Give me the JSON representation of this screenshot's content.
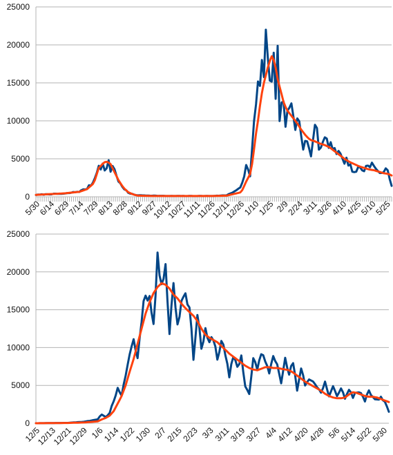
{
  "chart_data": [
    {
      "type": "line",
      "grid": true,
      "legend": "none",
      "ylim": [
        0,
        25000
      ],
      "yticks": [
        0,
        5000,
        10000,
        15000,
        20000,
        25000
      ],
      "xticks": [
        "5/30",
        "6/14",
        "6/29",
        "7/14",
        "7/29",
        "8/13",
        "8/28",
        "9/12",
        "9/27",
        "10/12",
        "10/27",
        "11/11",
        "11/26",
        "12/11",
        "12/26",
        "1/10",
        "1/25",
        "2/9",
        "2/24",
        "3/11",
        "3/26",
        "4/10",
        "4/25",
        "5/10",
        "5/25"
      ],
      "x_knots": [
        0,
        14,
        29,
        44,
        52,
        59,
        64,
        67,
        69,
        71,
        73,
        76,
        79,
        84,
        89,
        94,
        99,
        104,
        119,
        134,
        149,
        164,
        179,
        194,
        209,
        214,
        218,
        221,
        223,
        226,
        229,
        232,
        235,
        237,
        239,
        240,
        242,
        244,
        246,
        248,
        250,
        252,
        255,
        258,
        261,
        264,
        267,
        269,
        272,
        275,
        279,
        284,
        289,
        294,
        299,
        304,
        309,
        314,
        319,
        324,
        329,
        334,
        339,
        344,
        349,
        354,
        359,
        362
      ],
      "series": [
        {
          "y_knots": [
            250,
            350,
            400,
            700,
            1100,
            2000,
            4500,
            3000,
            5200,
            2500,
            4800,
            3500,
            4200,
            2000,
            1200,
            500,
            300,
            200,
            150,
            100,
            100,
            100,
            100,
            200,
            1200,
            4000,
            3000,
            7500,
            11000,
            14000,
            17500,
            16000,
            21500,
            12000,
            21000,
            16000,
            17500,
            12000,
            17800,
            9000,
            14000,
            11500,
            9000,
            12500,
            10500,
            8500,
            11000,
            9500,
            7000,
            9000,
            5000,
            9500,
            6000,
            8000,
            7000,
            6500,
            5500,
            4800,
            4500,
            3000,
            4000,
            3500,
            4500,
            4000,
            3000,
            3500,
            3200,
            1500
          ],
          "seed": 7,
          "noise": 0.12
        },
        {
          "y_knots": [
            250,
            350,
            450,
            650,
            1000,
            1800,
            3800,
            4200,
            4500,
            4600,
            4600,
            4300,
            3500,
            2200,
            1200,
            600,
            300,
            150,
            100,
            100,
            100,
            100,
            100,
            150,
            600,
            2000,
            3000,
            5000,
            7500,
            10000,
            13000,
            15000,
            16500,
            17500,
            18200,
            18500,
            18000,
            17000,
            15500,
            14500,
            13500,
            12500,
            11500,
            11000,
            10500,
            10000,
            9500,
            9000,
            8500,
            8000,
            7500,
            7300,
            7000,
            6800,
            6500,
            6000,
            5500,
            5000,
            4600,
            4300,
            4000,
            3800,
            3600,
            3500,
            3300,
            3100,
            3000,
            2800
          ],
          "seed": 0,
          "noise": 0
        }
      ]
    },
    {
      "type": "line",
      "grid": true,
      "legend": "none",
      "ylim": [
        0,
        25000
      ],
      "yticks": [
        0,
        5000,
        10000,
        15000,
        20000,
        25000
      ],
      "xticks": [
        "12/5",
        "12/13",
        "12/21",
        "12/29",
        "1/6",
        "1/14",
        "1/22",
        "1/30",
        "2/7",
        "2/15",
        "2/23",
        "3/3",
        "3/11",
        "3/19",
        "3/27",
        "4/4",
        "4/12",
        "4/20",
        "4/28",
        "5/6",
        "5/14",
        "5/22",
        "5/30"
      ],
      "x_knots": [
        0,
        16,
        24,
        31,
        33,
        35,
        37,
        39,
        41,
        43,
        45,
        47,
        49,
        51,
        53,
        55,
        57,
        59,
        61,
        63,
        65,
        67,
        69,
        71,
        73,
        75,
        77,
        79,
        81,
        83,
        85,
        87,
        89,
        91,
        93,
        95,
        97,
        99,
        101,
        103,
        105,
        107,
        109,
        111,
        113,
        115,
        117,
        119,
        121,
        123,
        125,
        127,
        129,
        131,
        133,
        135,
        137,
        139,
        141,
        143,
        145,
        147,
        149,
        151,
        153,
        155,
        157,
        159,
        161,
        163,
        165,
        167,
        169,
        171,
        173,
        175,
        177
      ],
      "series": [
        {
          "y_knots": [
            0,
            50,
            200,
            500,
            1200,
            800,
            1400,
            3000,
            4500,
            3500,
            6500,
            9000,
            11200,
            8500,
            14000,
            17500,
            16500,
            13000,
            21500,
            19000,
            21000,
            12000,
            18500,
            13000,
            16000,
            17800,
            15000,
            8800,
            14500,
            10000,
            12000,
            10500,
            11500,
            8500,
            11000,
            9000,
            6000,
            9000,
            7500,
            8800,
            5000,
            3800,
            8500,
            7000,
            9500,
            8000,
            6800,
            9000,
            8200,
            5500,
            8300,
            6500,
            8000,
            4200,
            7500,
            5000,
            6000,
            5500,
            4800,
            4000,
            5500,
            3500,
            4800,
            3500,
            4800,
            3200,
            4500,
            3500,
            4200,
            3800,
            3000,
            4200,
            3500,
            3000,
            3500,
            2800,
            1500
          ],
          "seed": 11,
          "noise": 0.05
        },
        {
          "y_knots": [
            0,
            40,
            100,
            250,
            500,
            700,
            1000,
            1600,
            2600,
            3600,
            5000,
            6800,
            8500,
            10500,
            12500,
            14500,
            16000,
            17200,
            18000,
            18500,
            18300,
            17800,
            17000,
            16500,
            15800,
            15200,
            14700,
            14200,
            13500,
            12500,
            11700,
            11300,
            11000,
            10700,
            10200,
            9700,
            9200,
            8800,
            8400,
            8000,
            7600,
            7300,
            7100,
            7000,
            7200,
            7400,
            7400,
            7300,
            7300,
            7200,
            7100,
            7000,
            6700,
            6300,
            5900,
            5500,
            5200,
            4900,
            4600,
            4300,
            3900,
            3600,
            3400,
            3300,
            3300,
            3400,
            3800,
            4100,
            4000,
            3800,
            3600,
            3500,
            3500,
            3400,
            3200,
            3000,
            2800
          ],
          "seed": 0,
          "noise": 0
        }
      ]
    }
  ]
}
